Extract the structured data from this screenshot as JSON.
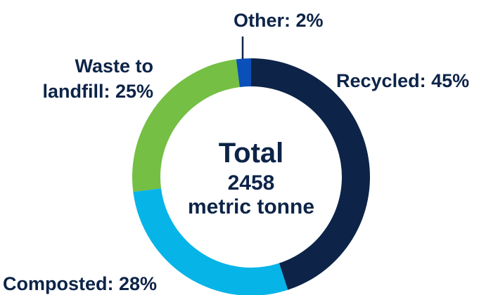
{
  "chart_data": {
    "type": "pie",
    "variant": "donut",
    "center": {
      "title": "Total",
      "value": "2458",
      "unit": "metric tonne"
    },
    "slices": [
      {
        "key": "recycled",
        "label": "Recycled: 45%",
        "value": 45,
        "color": "#0d2448"
      },
      {
        "key": "composted",
        "label": "Composted: 28%",
        "value": 28,
        "color": "#06b4e8"
      },
      {
        "key": "landfill",
        "label": "Waste to landfill: 25%",
        "label_lines": [
          "Waste to",
          "landfill: 25%"
        ],
        "value": 25,
        "color": "#74bf44"
      },
      {
        "key": "other",
        "label": "Other: 2%",
        "value": 2,
        "color": "#0b4fb8"
      }
    ],
    "start": "12 o'clock",
    "direction": "clockwise",
    "legend": "none (direct labels)"
  }
}
